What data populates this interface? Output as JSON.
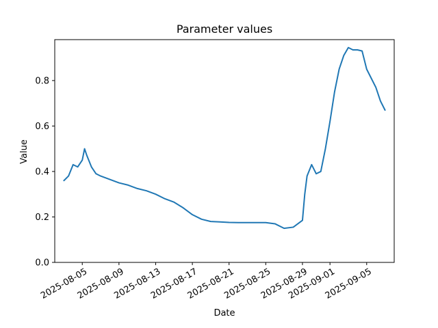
{
  "chart_data": {
    "type": "line",
    "title": "Parameter values",
    "xlabel": "Date",
    "ylabel": "Value",
    "x_axis_type": "date",
    "xlim": [
      "2025-08-02",
      "2025-09-08"
    ],
    "ylim": [
      0,
      0.98
    ],
    "x_ticks": [
      "2025-08-05",
      "2025-08-09",
      "2025-08-13",
      "2025-08-17",
      "2025-08-21",
      "2025-08-25",
      "2025-08-29",
      "2025-09-01",
      "2025-09-05"
    ],
    "y_ticks": [
      0.0,
      0.2,
      0.4,
      0.6,
      0.8
    ],
    "y_tick_labels": [
      "0.0",
      "0.2",
      "0.4",
      "0.6",
      "0.8"
    ],
    "grid": false,
    "legend": "none",
    "colors": {
      "series": "#1f77b4"
    },
    "series": [
      {
        "x": [
          "2025-08-03",
          "2025-08-03 12:00",
          "2025-08-04",
          "2025-08-04 12:00",
          "2025-08-05",
          "2025-08-05 06:00",
          "2025-08-05 12:00",
          "2025-08-06",
          "2025-08-06 12:00",
          "2025-08-07",
          "2025-08-08",
          "2025-08-09",
          "2025-08-10",
          "2025-08-11",
          "2025-08-12",
          "2025-08-13",
          "2025-08-14",
          "2025-08-15",
          "2025-08-16",
          "2025-08-17",
          "2025-08-18",
          "2025-08-19",
          "2025-08-20",
          "2025-08-21",
          "2025-08-22",
          "2025-08-23",
          "2025-08-24",
          "2025-08-25",
          "2025-08-26",
          "2025-08-27",
          "2025-08-28",
          "2025-08-28 12:00",
          "2025-08-29",
          "2025-08-29 06:00",
          "2025-08-29 12:00",
          "2025-08-30",
          "2025-08-30 12:00",
          "2025-08-31",
          "2025-08-31 12:00",
          "2025-09-01",
          "2025-09-01 12:00",
          "2025-09-02",
          "2025-09-02 12:00",
          "2025-09-03",
          "2025-09-03 12:00",
          "2025-09-04",
          "2025-09-04 12:00",
          "2025-09-05",
          "2025-09-06",
          "2025-09-06 12:00",
          "2025-09-07"
        ],
        "y": [
          0.36,
          0.38,
          0.43,
          0.42,
          0.45,
          0.5,
          0.47,
          0.42,
          0.39,
          0.38,
          0.365,
          0.35,
          0.34,
          0.325,
          0.315,
          0.3,
          0.28,
          0.265,
          0.24,
          0.21,
          0.19,
          0.18,
          0.178,
          0.176,
          0.175,
          0.175,
          0.175,
          0.175,
          0.17,
          0.15,
          0.155,
          0.17,
          0.185,
          0.3,
          0.38,
          0.43,
          0.39,
          0.4,
          0.5,
          0.62,
          0.75,
          0.85,
          0.91,
          0.945,
          0.935,
          0.935,
          0.93,
          0.85,
          0.77,
          0.71,
          0.67
        ]
      }
    ]
  }
}
